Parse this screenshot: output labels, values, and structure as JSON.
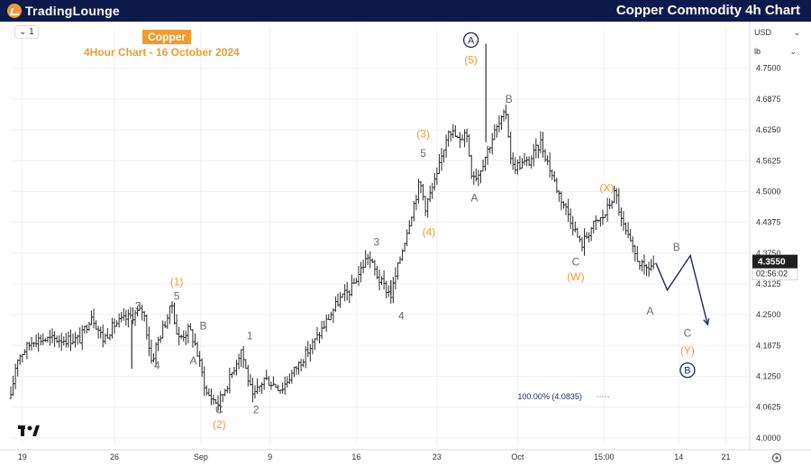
{
  "header": {
    "logo_main": "TradingLounge",
    "title": "Copper Commodity 4h Chart"
  },
  "toolbar": {
    "interval_label": "1",
    "currency": "USD",
    "unit": "lb",
    "price_tag": "4.3550",
    "countdown": "02:56:02"
  },
  "chart_data": {
    "type": "candlestick",
    "symbol": "Copper",
    "subtitle": "4Hour Chart - 16 October 2024",
    "y_axis": {
      "ticks": [
        "4.7500",
        "4.6875",
        "4.6250",
        "4.5625",
        "4.5000",
        "4.4375",
        "4.3750",
        "4.3125",
        "4.2500",
        "4.1875",
        "4.1250",
        "4.0625",
        "4.0000"
      ],
      "range": [
        3.985,
        4.83
      ]
    },
    "x_axis": {
      "ticks": [
        "19",
        "26",
        "Sep",
        "9",
        "16",
        "23",
        "Oct",
        "15:00",
        "14",
        "21"
      ]
    },
    "price_path": [
      {
        "t": 0,
        "p": 4.08
      },
      {
        "t": 1,
        "p": 4.16
      },
      {
        "t": 4,
        "p": 4.2
      },
      {
        "t": 7,
        "p": 4.2
      },
      {
        "t": 12,
        "p": 4.2
      },
      {
        "t": 14,
        "p": 4.25
      },
      {
        "t": 16,
        "p": 4.2
      },
      {
        "t": 18,
        "p": 4.23
      },
      {
        "t": 23,
        "p": 4.26
      },
      {
        "t": 24.5,
        "p": 4.15
      },
      {
        "t": 25,
        "p": 4.18
      },
      {
        "t": 28,
        "p": 4.27
      },
      {
        "t": 29,
        "p": 4.2
      },
      {
        "t": 31,
        "p": 4.22
      },
      {
        "t": 32,
        "p": 4.19
      },
      {
        "t": 34,
        "p": 4.09
      },
      {
        "t": 36,
        "p": 4.07
      },
      {
        "t": 38,
        "p": 4.12
      },
      {
        "t": 40,
        "p": 4.18
      },
      {
        "t": 42,
        "p": 4.08
      },
      {
        "t": 44,
        "p": 4.12
      },
      {
        "t": 47,
        "p": 4.1
      },
      {
        "t": 50,
        "p": 4.15
      },
      {
        "t": 53,
        "p": 4.2
      },
      {
        "t": 57,
        "p": 4.28
      },
      {
        "t": 59,
        "p": 4.3
      },
      {
        "t": 62,
        "p": 4.37
      },
      {
        "t": 64,
        "p": 4.32
      },
      {
        "t": 66,
        "p": 4.29
      },
      {
        "t": 69,
        "p": 4.43
      },
      {
        "t": 71,
        "p": 4.52
      },
      {
        "t": 72,
        "p": 4.47
      },
      {
        "t": 74,
        "p": 4.53
      },
      {
        "t": 76,
        "p": 4.63
      },
      {
        "t": 78,
        "p": 4.6
      },
      {
        "t": 79,
        "p": 4.63
      },
      {
        "t": 80,
        "p": 4.54
      },
      {
        "t": 81,
        "p": 4.53
      },
      {
        "t": 84,
        "p": 4.62
      },
      {
        "t": 86,
        "p": 4.66
      },
      {
        "t": 87,
        "p": 4.55
      },
      {
        "t": 90,
        "p": 4.56
      },
      {
        "t": 92,
        "p": 4.6
      },
      {
        "t": 95,
        "p": 4.5
      },
      {
        "t": 97,
        "p": 4.45
      },
      {
        "t": 99,
        "p": 4.39
      },
      {
        "t": 101,
        "p": 4.43
      },
      {
        "t": 103,
        "p": 4.45
      },
      {
        "t": 105,
        "p": 4.5
      },
      {
        "t": 106,
        "p": 4.44
      },
      {
        "t": 108,
        "p": 4.38
      },
      {
        "t": 110,
        "p": 4.34
      },
      {
        "t": 112,
        "p": 4.355
      }
    ],
    "spikes": [
      {
        "t": 82.5,
        "high": 4.8,
        "low": 4.6
      },
      {
        "t": 21,
        "high": 4.24,
        "low": 4.14
      },
      {
        "t": 66,
        "high": 4.32,
        "low": 4.29
      }
    ],
    "projection": [
      {
        "t": 112,
        "p": 4.355
      },
      {
        "t": 114,
        "p": 4.3
      },
      {
        "t": 118,
        "p": 4.37
      },
      {
        "t": 121,
        "p": 4.23
      }
    ],
    "fib_level": {
      "label": "100.00% (4.0835)",
      "value": 4.0835,
      "t_start": 88,
      "t_end": 104
    },
    "wave_labels": [
      {
        "text": "A",
        "t": 79.9,
        "p": 4.8,
        "style": "circle"
      },
      {
        "text": "(5)",
        "t": 79.9,
        "p": 4.76,
        "style": "orange"
      },
      {
        "text": "B",
        "t": 86.5,
        "p": 4.68,
        "style": "gray"
      },
      {
        "text": "(3)",
        "t": 71.6,
        "p": 4.61,
        "style": "orange"
      },
      {
        "text": "5",
        "t": 71.6,
        "p": 4.57,
        "style": "gray"
      },
      {
        "text": "A",
        "t": 80.5,
        "p": 4.48,
        "style": "gray"
      },
      {
        "text": "(X)",
        "t": 103.5,
        "p": 4.5,
        "style": "orange"
      },
      {
        "text": "(4)",
        "t": 72.6,
        "p": 4.41,
        "style": "orange"
      },
      {
        "text": "3",
        "t": 63.5,
        "p": 4.39,
        "style": "gray"
      },
      {
        "text": "B",
        "t": 115.6,
        "p": 4.38,
        "style": "gray"
      },
      {
        "text": "C",
        "t": 98.1,
        "p": 4.35,
        "style": "gray"
      },
      {
        "text": "(W)",
        "t": 98.1,
        "p": 4.32,
        "style": "orange"
      },
      {
        "text": "(1)",
        "t": 28.8,
        "p": 4.31,
        "style": "orange"
      },
      {
        "text": "5",
        "t": 28.8,
        "p": 4.28,
        "style": "gray"
      },
      {
        "text": "3",
        "t": 22.1,
        "p": 4.26,
        "style": "gray"
      },
      {
        "text": "A",
        "t": 111,
        "p": 4.25,
        "style": "gray"
      },
      {
        "text": "4",
        "t": 67.8,
        "p": 4.24,
        "style": "gray"
      },
      {
        "text": "B",
        "t": 33.4,
        "p": 4.22,
        "style": "gray"
      },
      {
        "text": "1",
        "t": 41.5,
        "p": 4.2,
        "style": "gray"
      },
      {
        "text": "C",
        "t": 117.5,
        "p": 4.205,
        "style": "gray"
      },
      {
        "text": "A",
        "t": 31.7,
        "p": 4.15,
        "style": "gray"
      },
      {
        "text": "(Y)",
        "t": 117.5,
        "p": 4.17,
        "style": "orange"
      },
      {
        "text": "B",
        "t": 117.5,
        "p": 4.13,
        "style": "circle"
      },
      {
        "text": "4",
        "t": 25.4,
        "p": 4.14,
        "style": "gray"
      },
      {
        "text": "C",
        "t": 36.2,
        "p": 4.05,
        "style": "gray"
      },
      {
        "text": "2",
        "t": 42.6,
        "p": 4.05,
        "style": "gray"
      },
      {
        "text": "(2)",
        "t": 36.2,
        "p": 4.02,
        "style": "orange"
      }
    ],
    "colors": {
      "candle": "#2b2b2b",
      "orange": "#f29a2e",
      "gray": "#6b6b6b",
      "navy": "#1a2a5e",
      "price_tag_bg": "#1f1f1f",
      "grid": "#eef0f3"
    }
  }
}
